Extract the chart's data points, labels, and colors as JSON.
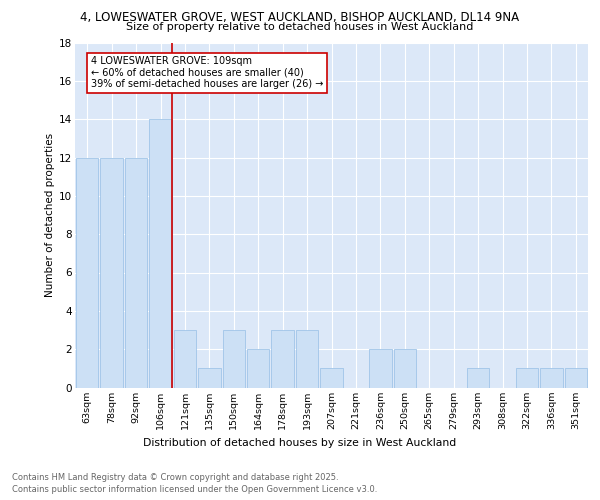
{
  "title_line1": "4, LOWESWATER GROVE, WEST AUCKLAND, BISHOP AUCKLAND, DL14 9NA",
  "title_line2": "Size of property relative to detached houses in West Auckland",
  "xlabel": "Distribution of detached houses by size in West Auckland",
  "ylabel": "Number of detached properties",
  "categories": [
    "63sqm",
    "78sqm",
    "92sqm",
    "106sqm",
    "121sqm",
    "135sqm",
    "150sqm",
    "164sqm",
    "178sqm",
    "193sqm",
    "207sqm",
    "221sqm",
    "236sqm",
    "250sqm",
    "265sqm",
    "279sqm",
    "293sqm",
    "308sqm",
    "322sqm",
    "336sqm",
    "351sqm"
  ],
  "values": [
    12,
    12,
    12,
    14,
    3,
    1,
    3,
    2,
    3,
    3,
    1,
    0,
    2,
    2,
    0,
    0,
    1,
    0,
    1,
    1,
    1
  ],
  "bar_color": "#cce0f5",
  "bar_edge_color": "#a0c4e8",
  "red_line_index": 3,
  "annotation_text": "4 LOWESWATER GROVE: 109sqm\n← 60% of detached houses are smaller (40)\n39% of semi-detached houses are larger (26) →",
  "annotation_box_color": "#ffffff",
  "annotation_box_edge": "#cc0000",
  "annotation_text_color": "#000000",
  "red_line_color": "#cc0000",
  "ylim": [
    0,
    18
  ],
  "yticks": [
    0,
    2,
    4,
    6,
    8,
    10,
    12,
    14,
    16,
    18
  ],
  "background_color": "#dce8f8",
  "footer_line1": "Contains HM Land Registry data © Crown copyright and database right 2025.",
  "footer_line2": "Contains public sector information licensed under the Open Government Licence v3.0."
}
